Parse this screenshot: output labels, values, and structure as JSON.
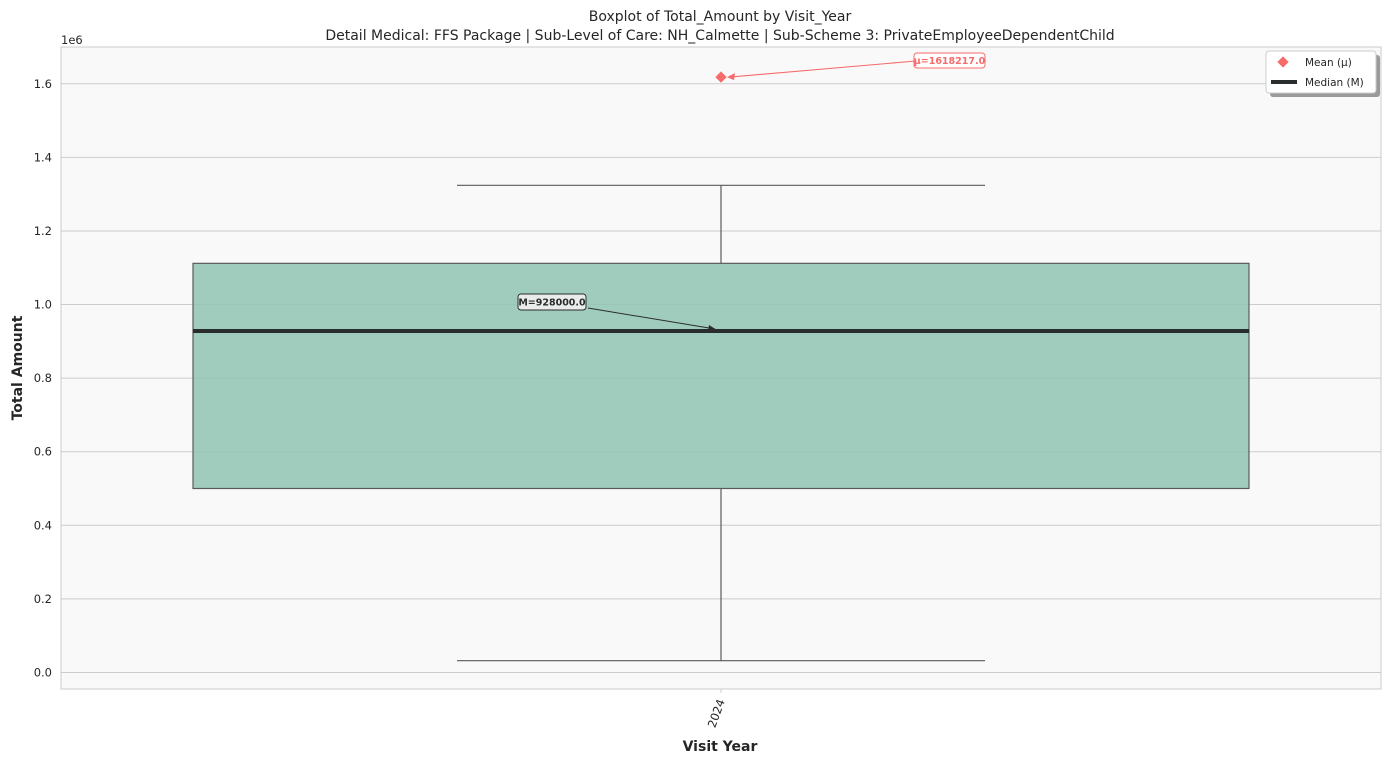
{
  "chart_data": {
    "type": "box",
    "title": "Boxplot of Total_Amount by Visit_Year",
    "subtitle": "Detail Medical: FFS Package | Sub-Level of Care: NH_Calmette | Sub-Scheme 3: PrivateEmployeeDependentChild",
    "xlabel": "Visit Year",
    "ylabel": "Total Amount",
    "y_scale_label": "1e6",
    "categories": [
      "2024"
    ],
    "boxes": [
      {
        "category": "2024",
        "whisker_low": 32000,
        "q1": 500000,
        "median": 928000,
        "q3": 1112000,
        "whisker_high": 1324000,
        "mean": 1618217.0
      }
    ],
    "ylim": [
      -45000,
      1700000
    ],
    "y_ticks": [
      0,
      200000,
      400000,
      600000,
      800000,
      1000000,
      1200000,
      1400000,
      1600000
    ],
    "y_tick_labels": [
      "0.0",
      "0.2",
      "0.4",
      "0.6",
      "0.8",
      "1.0",
      "1.2",
      "1.4",
      "1.6"
    ],
    "annotations": {
      "mean_label": "μ=1618217.0",
      "median_label": "M=928000.0"
    },
    "legend": {
      "placement": "top-right",
      "items": [
        {
          "label": "Mean (μ)",
          "marker": "diamond"
        },
        {
          "label": "Median (M)",
          "marker": "line"
        }
      ]
    },
    "grid": true,
    "colors": {
      "box_fill": "#8fc4b3",
      "box_edge": "#5a5a5a",
      "median": "#2a2d2e",
      "mean": "#f76b6b",
      "plot_bg": "#f9f9f9",
      "grid": "#cccccc"
    }
  }
}
